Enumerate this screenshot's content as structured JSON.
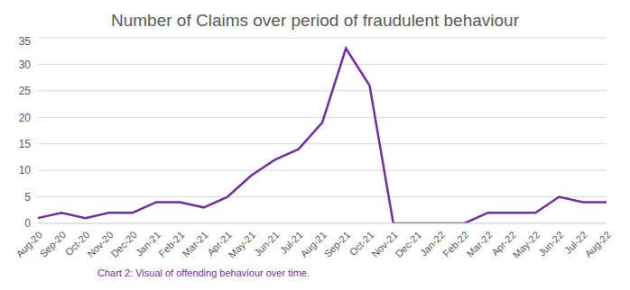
{
  "chart_data": {
    "type": "line",
    "title": "Number of Claims over period of fraudulent behaviour",
    "caption": "Chart 2: Visual of offending behaviour over time.",
    "categories": [
      "Aug-20",
      "Sep-20",
      "Oct-20",
      "Nov-20",
      "Dec-20",
      "Jan-21",
      "Feb-21",
      "Mar-21",
      "Apr-21",
      "May-21",
      "Jun-21",
      "Jul-21",
      "Aug-21",
      "Sep-21",
      "Oct-21",
      "Nov-21",
      "Dec-21",
      "Jan-22",
      "Feb-22",
      "Mar-22",
      "Apr-22",
      "May-22",
      "Jun-22",
      "Jul-22",
      "Aug-22"
    ],
    "values": [
      1,
      2,
      1,
      2,
      2,
      4,
      4,
      3,
      5,
      9,
      12,
      14,
      19,
      33,
      26,
      0,
      0,
      0,
      0,
      2,
      2,
      2,
      5,
      4,
      4
    ],
    "color": "#7030a0",
    "ylim": [
      0,
      35
    ],
    "yticks": [
      0,
      5,
      10,
      15,
      20,
      25,
      30,
      35
    ],
    "grid": true
  }
}
